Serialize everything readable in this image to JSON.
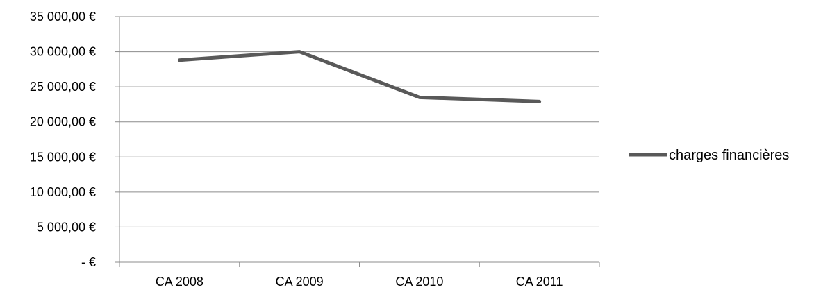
{
  "chart_data": {
    "type": "line",
    "title": "",
    "xlabel": "",
    "ylabel": "",
    "categories": [
      "CA 2008",
      "CA 2009",
      "CA 2010",
      "CA 2011"
    ],
    "series": [
      {
        "name": "charges financières",
        "values": [
          28800,
          30000,
          23500,
          22900
        ],
        "color": "#595959"
      }
    ],
    "ylim": [
      0,
      35000
    ],
    "y_ticks": [
      {
        "value": 35000,
        "label": "35 000,00 €"
      },
      {
        "value": 30000,
        "label": "30 000,00 €"
      },
      {
        "value": 25000,
        "label": "25 000,00 €"
      },
      {
        "value": 20000,
        "label": "20 000,00 €"
      },
      {
        "value": 15000,
        "label": "15 000,00 €"
      },
      {
        "value": 10000,
        "label": "10 000,00 €"
      },
      {
        "value": 5000,
        "label": "5 000,00 €"
      },
      {
        "value": 0,
        "label": "-  €"
      }
    ],
    "grid": true,
    "gridline_color": "#8c8c8c",
    "axis_color": "#8c8c8c",
    "legend_position": "right"
  }
}
